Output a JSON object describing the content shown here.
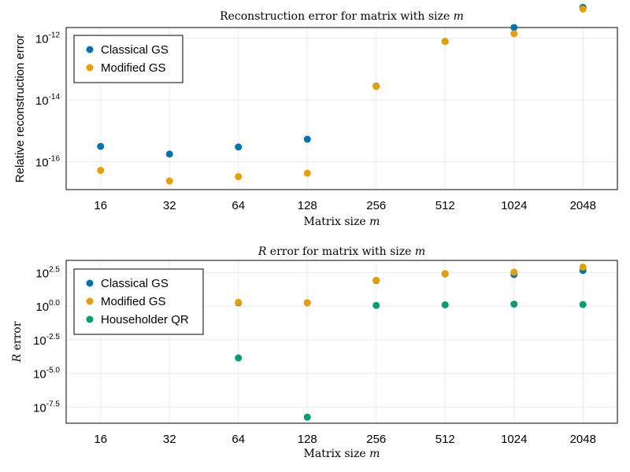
{
  "colors": {
    "classical": "#0072b2",
    "modified": "#e69f00",
    "householder": "#009e73"
  },
  "chart_data": [
    {
      "type": "scatter",
      "title_parts": [
        {
          "text": "Reconstruction error for matrix with size ",
          "italic": false
        },
        {
          "text": "m",
          "italic": true
        }
      ],
      "xlabel_parts": [
        {
          "text": "Matrix size ",
          "italic": false
        },
        {
          "text": "m",
          "italic": true
        }
      ],
      "ylabel": "Relative reconstruction error",
      "ylabel_font": "sans",
      "x_categories": [
        "16",
        "32",
        "64",
        "128",
        "256",
        "512",
        "1024",
        "2048"
      ],
      "y_scale": "log10",
      "ylim_log10": [
        -16.9,
        -11.65
      ],
      "y_ticks": [
        {
          "base": "10",
          "exp": "-16",
          "log10": -16
        },
        {
          "base": "10",
          "exp": "-14",
          "log10": -14
        },
        {
          "base": "10",
          "exp": "-12",
          "log10": -12
        }
      ],
      "legend_position": "top-left",
      "series": [
        {
          "name": "Classical GS",
          "color_key": "classical",
          "log10_values": [
            -15.5,
            -15.75,
            -15.52,
            -15.27,
            -13.55,
            -12.1,
            -11.65,
            -11.0
          ]
        },
        {
          "name": "Modified GS",
          "color_key": "modified",
          "log10_values": [
            -16.28,
            -16.62,
            -16.48,
            -16.37,
            -13.56,
            -12.1,
            -11.85,
            -11.05
          ]
        }
      ],
      "hidden_series": [
        {
          "color_key": "householder",
          "log10_values": [
            null,
            null,
            null,
            null,
            null,
            null,
            null,
            -11.0
          ]
        }
      ]
    },
    {
      "type": "scatter",
      "title_parts": [
        {
          "text": "R",
          "italic": true
        },
        {
          "text": " error for matrix with size ",
          "italic": false
        },
        {
          "text": "m",
          "italic": true
        }
      ],
      "xlabel_parts": [
        {
          "text": "Matrix size ",
          "italic": false
        },
        {
          "text": "m",
          "italic": true
        }
      ],
      "ylabel_parts": [
        {
          "text": "R",
          "italic": true
        },
        {
          "text": " error",
          "italic": false
        }
      ],
      "ylabel_font": "serif",
      "x_categories": [
        "16",
        "32",
        "64",
        "128",
        "256",
        "512",
        "1024",
        "2048"
      ],
      "y_scale": "log10",
      "ylim_log10": [
        -8.7,
        3.4
      ],
      "y_ticks": [
        {
          "base": "10",
          "exp": "2.5",
          "log10": 2.5
        },
        {
          "base": "10",
          "exp": "0.0",
          "log10": 0.0
        },
        {
          "base": "10",
          "exp": "-2.5",
          "log10": -2.5
        },
        {
          "base": "10",
          "exp": "-5.0",
          "log10": -5.0
        },
        {
          "base": "10",
          "exp": "-7.5",
          "log10": -7.5
        }
      ],
      "legend_position": "top-left",
      "series": [
        {
          "name": "Classical GS",
          "color_key": "classical",
          "log10_values": [
            null,
            null,
            0.25,
            0.25,
            1.9,
            2.4,
            2.35,
            2.65
          ]
        },
        {
          "name": "Modified GS",
          "color_key": "modified",
          "log10_values": [
            null,
            null,
            0.28,
            0.25,
            1.92,
            2.42,
            2.52,
            2.9
          ]
        },
        {
          "name": "Householder QR",
          "color_key": "householder",
          "log10_values": [
            null,
            null,
            -3.85,
            -8.25,
            0.05,
            0.1,
            0.15,
            0.12
          ]
        }
      ]
    }
  ]
}
